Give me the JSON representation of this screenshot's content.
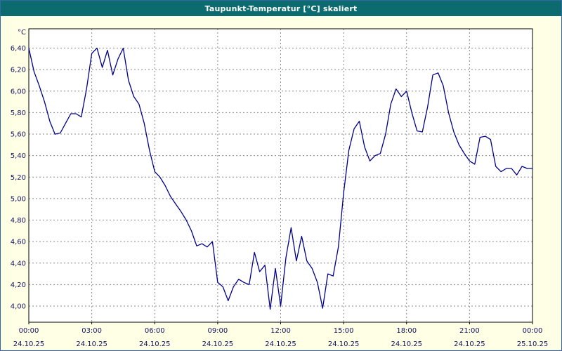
{
  "title": "Taupunkt-Temperatur [°C] skaliert",
  "colors": {
    "titlebar_bg": "#0b6b6e",
    "titlebar_text": "#ffffff",
    "window_bg": "#ffffe6",
    "plot_bg": "#ffffff",
    "line": "#00008b",
    "grid": "#8a8a8a",
    "axis_text": "#101060",
    "plot_border": "#000000"
  },
  "chart_data": {
    "type": "line",
    "title": "Taupunkt-Temperatur [°C] skaliert",
    "ylabel_unit": "°C",
    "grid": "dashed",
    "legend": "none",
    "xlim": [
      0,
      24
    ],
    "ylim": [
      3.85,
      6.58
    ],
    "yticks": [
      6.4,
      6.2,
      6.0,
      5.8,
      5.6,
      5.4,
      5.2,
      5.0,
      4.8,
      4.6,
      4.4,
      4.2,
      4.0
    ],
    "ytick_labels": [
      "6,40",
      "6,20",
      "6,00",
      "5,80",
      "5,60",
      "5,40",
      "5,20",
      "5,00",
      "4,80",
      "4,60",
      "4,40",
      "4,20",
      "4,00"
    ],
    "xticks": {
      "hours": [
        0,
        3,
        6,
        9,
        12,
        15,
        18,
        21,
        24
      ],
      "time_labels": [
        "00:00",
        "03:00",
        "06:00",
        "09:00",
        "12:00",
        "15:00",
        "18:00",
        "21:00",
        "00:00"
      ],
      "date_labels": [
        "24.10.25",
        "24.10.25",
        "24.10.25",
        "24.10.25",
        "24.10.25",
        "24.10.25",
        "24.10.25",
        "24.10.25",
        "25.10.25"
      ]
    },
    "x_hours": [
      0,
      0.25,
      0.5,
      0.75,
      1,
      1.25,
      1.5,
      1.75,
      2,
      2.25,
      2.5,
      2.75,
      3,
      3.25,
      3.5,
      3.75,
      4,
      4.25,
      4.5,
      4.75,
      5,
      5.25,
      5.5,
      5.75,
      6,
      6.25,
      6.5,
      6.75,
      7,
      7.25,
      7.5,
      7.75,
      8,
      8.25,
      8.5,
      8.75,
      9,
      9.25,
      9.5,
      9.75,
      10,
      10.25,
      10.5,
      10.75,
      11,
      11.25,
      11.5,
      11.75,
      12,
      12.25,
      12.5,
      12.75,
      13,
      13.25,
      13.5,
      13.75,
      14,
      14.25,
      14.5,
      14.75,
      15,
      15.25,
      15.5,
      15.75,
      16,
      16.25,
      16.5,
      16.75,
      17,
      17.25,
      17.5,
      17.75,
      18,
      18.25,
      18.5,
      18.75,
      19,
      19.25,
      19.5,
      19.75,
      20,
      20.25,
      20.5,
      20.75,
      21,
      21.25,
      21.5,
      21.75,
      22,
      22.25,
      22.5,
      22.75,
      23,
      23.25,
      23.5,
      23.75,
      24
    ],
    "values": [
      6.4,
      6.18,
      6.05,
      5.9,
      5.72,
      5.6,
      5.61,
      5.7,
      5.79,
      5.79,
      5.76,
      6.02,
      6.35,
      6.4,
      6.22,
      6.38,
      6.15,
      6.3,
      6.4,
      6.1,
      5.95,
      5.88,
      5.7,
      5.45,
      5.25,
      5.2,
      5.12,
      5.02,
      4.95,
      4.88,
      4.8,
      4.7,
      4.56,
      4.58,
      4.55,
      4.6,
      4.22,
      4.18,
      4.05,
      4.18,
      4.25,
      4.22,
      4.2,
      4.5,
      4.32,
      4.38,
      3.97,
      4.35,
      4.0,
      4.45,
      4.73,
      4.42,
      4.65,
      4.42,
      4.35,
      4.22,
      3.98,
      4.3,
      4.28,
      4.55,
      5.05,
      5.45,
      5.65,
      5.72,
      5.48,
      5.35,
      5.4,
      5.42,
      5.6,
      5.88,
      6.02,
      5.95,
      6.0,
      5.8,
      5.63,
      5.62,
      5.85,
      6.15,
      6.17,
      6.05,
      5.8,
      5.62,
      5.5,
      5.42,
      5.35,
      5.32,
      5.57,
      5.58,
      5.55,
      5.3,
      5.25,
      5.28,
      5.28,
      5.22,
      5.3,
      5.28,
      5.28
    ]
  }
}
